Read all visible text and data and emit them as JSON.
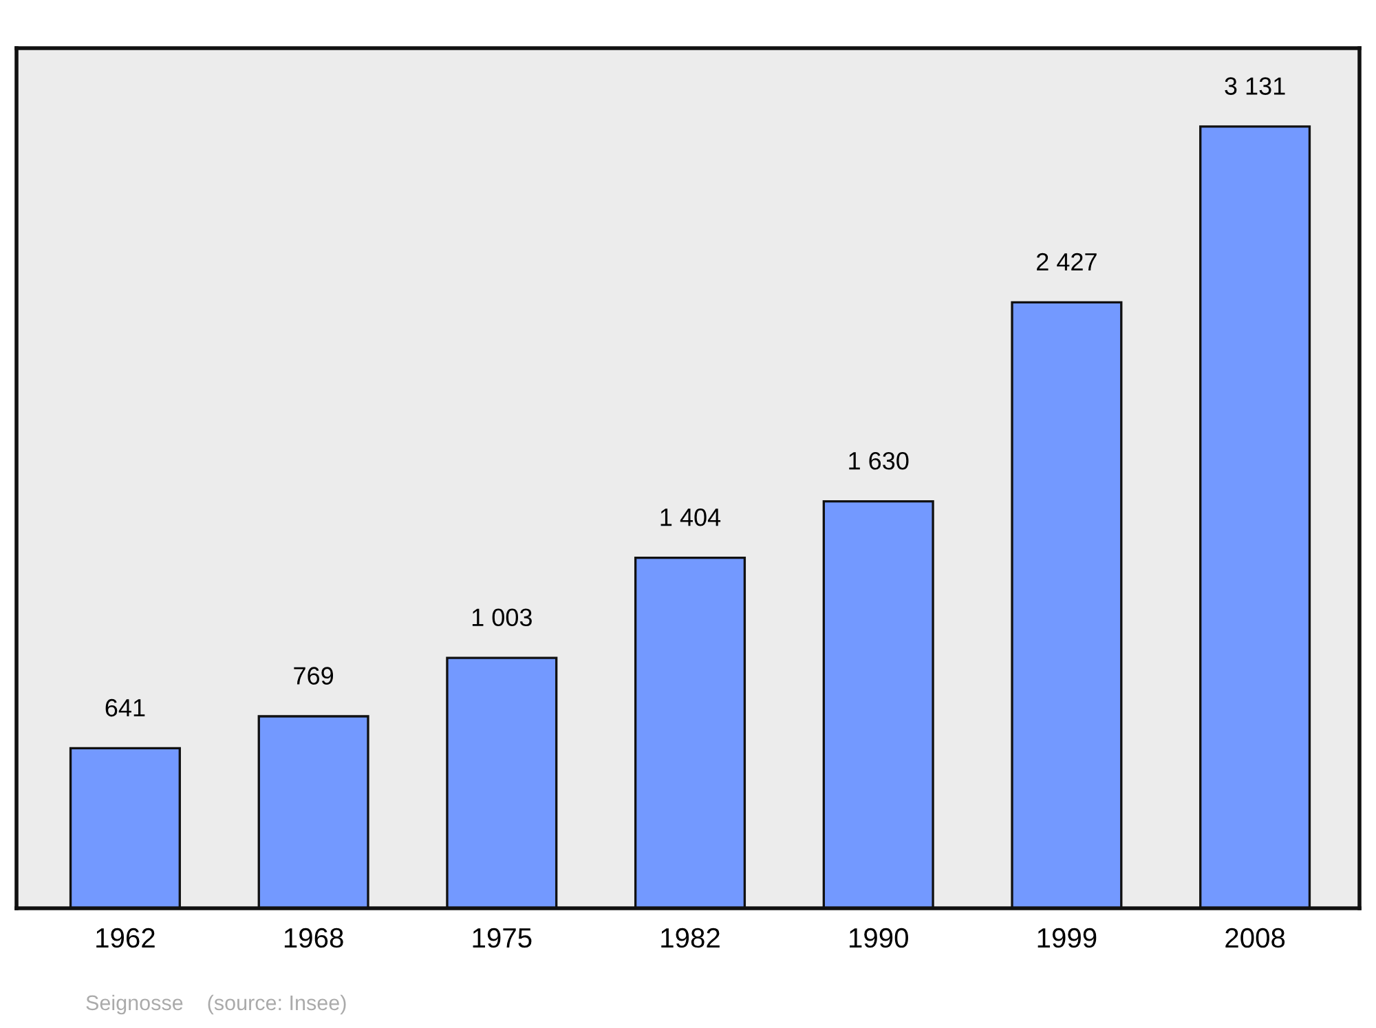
{
  "chart_data": {
    "type": "bar",
    "categories": [
      "1962",
      "1968",
      "1975",
      "1982",
      "1990",
      "1999",
      "2008"
    ],
    "values": [
      641,
      769,
      1003,
      1404,
      1630,
      2427,
      3131
    ],
    "value_labels": [
      "641",
      "769",
      "1 003",
      "1 404",
      "1 630",
      "2 427",
      "3 131"
    ],
    "color": "#7399ff",
    "ylim": [
      0,
      3445
    ],
    "tick_labels": "x",
    "annotations": [
      "Seignosse    (source: Insee)"
    ]
  }
}
